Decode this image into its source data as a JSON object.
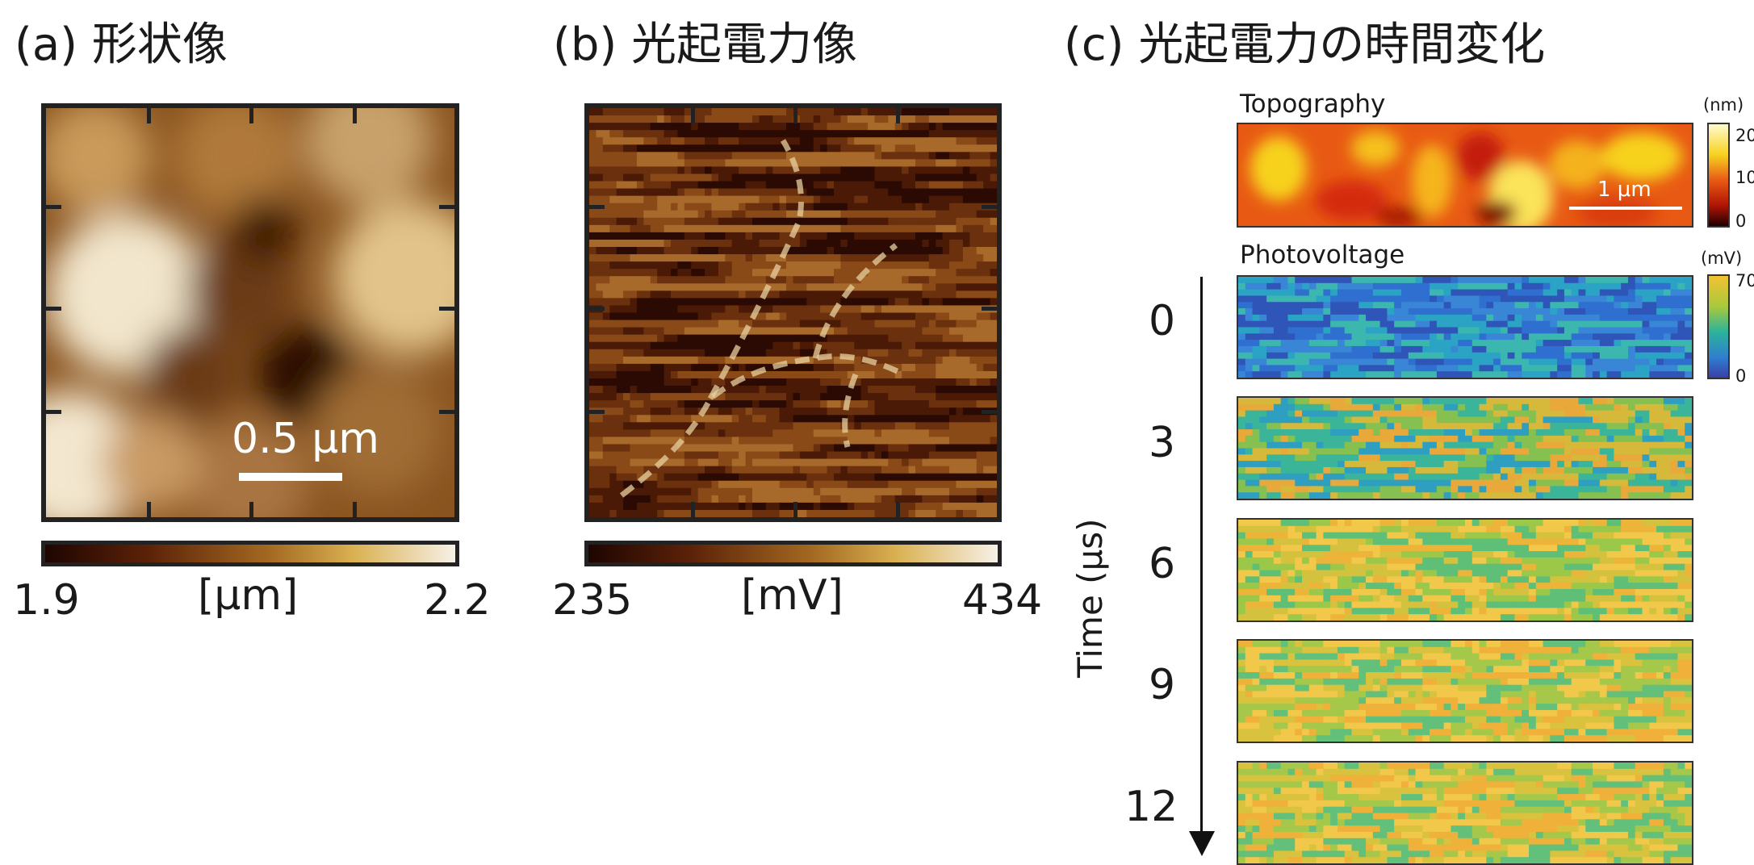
{
  "panel_a": {
    "title": "(a) 形状像",
    "scale_bar": "0.5 μm",
    "colorbar": {
      "min": "1.9",
      "unit": "[μm]",
      "max": "2.2",
      "min_value": 1.9,
      "max_value": 2.2
    }
  },
  "panel_b": {
    "title": "(b) 光起電力像",
    "colorbar": {
      "min": "235",
      "unit": "[mV]",
      "max": "434",
      "min_value": 235,
      "max_value": 434
    }
  },
  "panel_c": {
    "title": "(c) 光起電力の時間変化",
    "topography": {
      "label": "Topography",
      "scale_bar": "1 μm",
      "cbar_unit": "(nm)",
      "cbar_ticks": [
        "20",
        "10",
        "0"
      ]
    },
    "photovoltage": {
      "label": "Photovoltage",
      "cbar_unit": "(mV)",
      "cbar_ticks": [
        "70",
        "0"
      ]
    },
    "time_axis_label": "Time (μs)",
    "time_ticks": [
      "0",
      "3",
      "6",
      "9",
      "12"
    ]
  },
  "colors": {
    "copper_dark": "#1e0501",
    "copper_light": "#f6f0e6",
    "topo_hot": "#c81e0a",
    "pv_low": "#2a5db0",
    "pv_high": "#f1b93a"
  }
}
